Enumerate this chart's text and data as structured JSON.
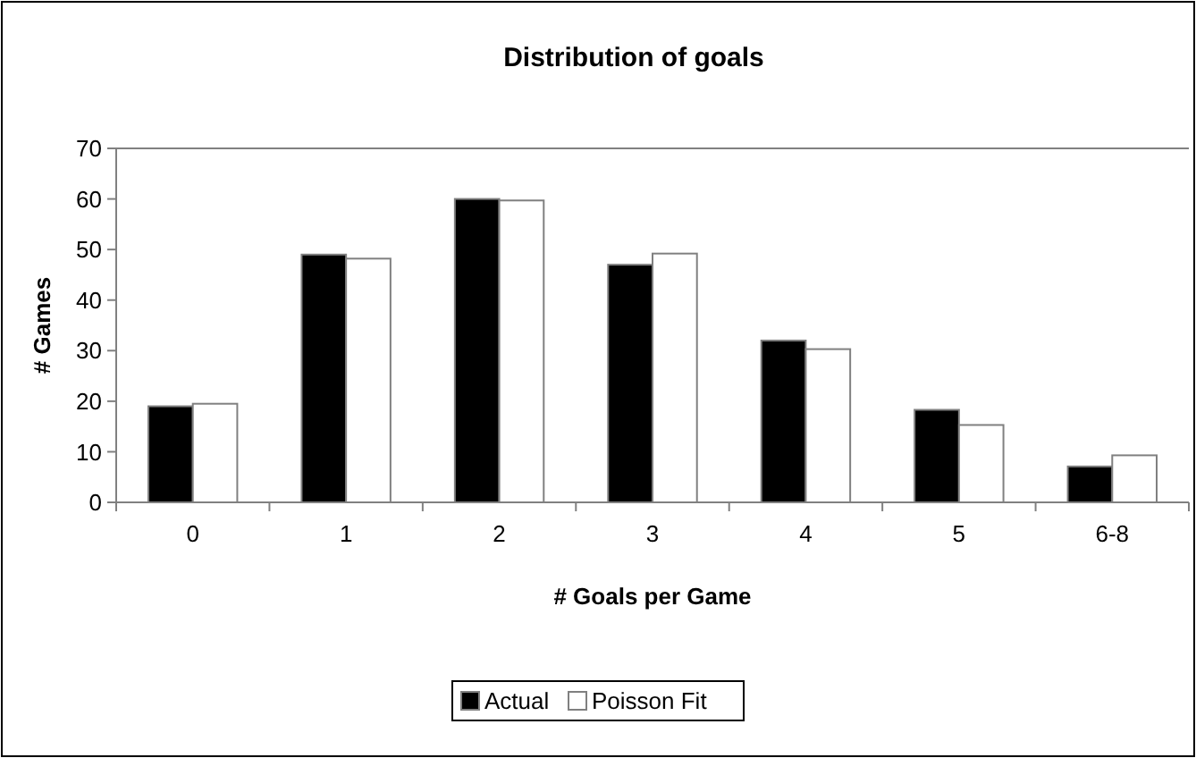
{
  "chart_data": {
    "type": "bar",
    "title": "Distribution of goals",
    "xlabel": "# Goals per Game",
    "ylabel": "# Games",
    "categories": [
      "0",
      "1",
      "2",
      "3",
      "4",
      "5",
      "6-8"
    ],
    "series": [
      {
        "name": "Actual",
        "color": "#000000",
        "values": [
          19,
          49,
          60,
          47,
          32,
          18.3,
          7.1
        ]
      },
      {
        "name": "Poisson Fit",
        "color": "#ffffff",
        "values": [
          19.5,
          48.2,
          59.7,
          49.2,
          30.3,
          15.3,
          9.3
        ]
      }
    ],
    "ylim": [
      0,
      70
    ],
    "yticks": [
      0,
      10,
      20,
      30,
      40,
      50,
      60,
      70
    ],
    "grid": false,
    "legend": "bottom"
  }
}
